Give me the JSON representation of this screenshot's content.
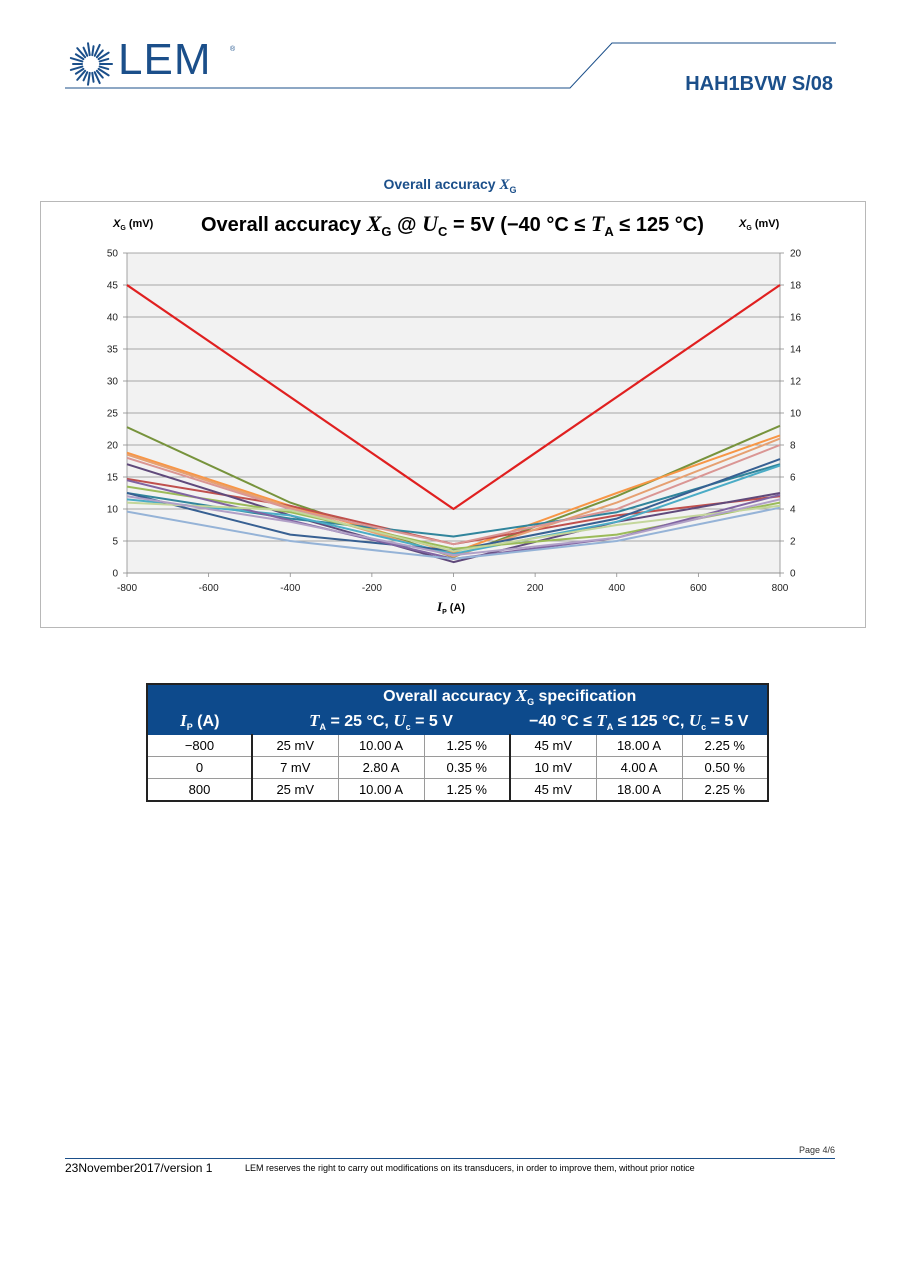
{
  "header": {
    "logo_text": "LEM",
    "logo_registered": "®",
    "doc_code": "HAH1BVW S/08",
    "brand_color": "#1b4f8a"
  },
  "section": {
    "title_prefix": "Overall accuracy ",
    "title_symbol": "X",
    "title_sub": "G"
  },
  "chart_data": {
    "type": "line",
    "title": {
      "p1": "Overall accuracy ",
      "x": "X",
      "xs": "G",
      "p2": " @ ",
      "u": "U",
      "us": "C",
      "p3": " = 5V (−40 °C ≤ ",
      "t": "T",
      "ts": "A",
      "p4": " ≤ 125 °C)"
    },
    "ylabel_left": {
      "sym": "X",
      "sub": "G",
      "unit": " (mV)"
    },
    "ylabel_right": {
      "sym": "X",
      "sub": "G",
      "unit": " (mV)"
    },
    "xlabel": {
      "sym": "I",
      "sub": "P",
      "unit": " (A)"
    },
    "x_ticks": [
      "-800",
      "-600",
      "-400",
      "-200",
      "0",
      "200",
      "400",
      "600",
      "800"
    ],
    "y_left_ticks": [
      "0",
      "5",
      "10",
      "15",
      "20",
      "25",
      "30",
      "35",
      "40",
      "45",
      "50"
    ],
    "y_right_ticks": [
      "0",
      "2",
      "4",
      "6",
      "8",
      "10",
      "12",
      "14",
      "16",
      "18",
      "20"
    ],
    "xlim": [
      -800,
      800
    ],
    "ylim_left": [
      0,
      50
    ],
    "ylim_right": [
      0,
      20
    ],
    "grid": true,
    "plot_bg": "#f2f2f2",
    "limit_color": "#e02020",
    "series": [
      {
        "color": "#e02020",
        "x": [
          -800,
          0,
          800
        ],
        "y": [
          45,
          10,
          45
        ]
      },
      {
        "color": "#77933c",
        "x": [
          -800,
          -400,
          0,
          400,
          800
        ],
        "y": [
          22.8,
          11,
          2.5,
          12,
          23
        ]
      },
      {
        "color": "#f79646",
        "x": [
          -800,
          -400,
          0,
          400,
          800
        ],
        "y": [
          18.8,
          10.5,
          3.2,
          12.5,
          21.5
        ]
      },
      {
        "color": "#c0504d",
        "x": [
          -800,
          -400,
          0,
          400,
          800
        ],
        "y": [
          14.7,
          10.5,
          4.5,
          9,
          12
        ]
      },
      {
        "color": "#604a7b",
        "x": [
          -800,
          -400,
          0,
          400,
          800
        ],
        "y": [
          17,
          9,
          1.7,
          8,
          12.5
        ]
      },
      {
        "color": "#e6a071",
        "x": [
          -800,
          -400,
          0,
          400,
          800
        ],
        "y": [
          18.5,
          10.2,
          2.6,
          11,
          21
        ]
      },
      {
        "color": "#31859c",
        "x": [
          -800,
          -400,
          0,
          400,
          800
        ],
        "y": [
          12.5,
          8.5,
          5.7,
          9.5,
          17
        ]
      },
      {
        "color": "#4bacc6",
        "x": [
          -800,
          -400,
          0,
          400,
          800
        ],
        "y": [
          11.5,
          9,
          3,
          8,
          16.8
        ]
      },
      {
        "color": "#376092",
        "x": [
          -800,
          -400,
          0,
          400,
          800
        ],
        "y": [
          12.5,
          6,
          3.5,
          8.5,
          17.8
        ]
      },
      {
        "color": "#9bbb59",
        "x": [
          -800,
          -400,
          0,
          400,
          800
        ],
        "y": [
          13.5,
          9.5,
          3.8,
          6,
          11
        ]
      },
      {
        "color": "#da9694",
        "x": [
          -800,
          -400,
          0,
          400,
          800
        ],
        "y": [
          18,
          10,
          4.5,
          10,
          20
        ]
      },
      {
        "color": "#8064a2",
        "x": [
          -800,
          -400,
          0,
          400,
          800
        ],
        "y": [
          14.5,
          8.2,
          2.2,
          5.5,
          12.2
        ]
      },
      {
        "color": "#c3d69b",
        "x": [
          -800,
          -400,
          0,
          400,
          800
        ],
        "y": [
          11,
          9.8,
          3.4,
          7.5,
          10.5
        ]
      },
      {
        "color": "#95b3d7",
        "x": [
          -800,
          -400,
          0,
          400,
          800
        ],
        "y": [
          9.6,
          5,
          2.2,
          5,
          10.2
        ]
      },
      {
        "color": "#b1a0c7",
        "x": [
          -800,
          -400,
          0,
          400,
          800
        ],
        "y": [
          12,
          8,
          2.8,
          5.5,
          11.5
        ]
      }
    ]
  },
  "spec_table": {
    "header_prefix": "Overall accuracy ",
    "header_symbol": "X",
    "header_sub": "G",
    "header_suffix": " specification",
    "ip_sym": "I",
    "ip_sub": "P",
    "ip_unit": "  (A)",
    "cond1": {
      "t": "T",
      "ts": "A",
      "mid": " = 25 °C, ",
      "u": "U",
      "us": "c",
      "end": " = 5 V"
    },
    "cond2": {
      "pre": "−40 °C ≤ ",
      "t": "T",
      "ts": "A",
      "mid": " ≤ 125 °C, ",
      "u": "U",
      "us": "c",
      "end": " = 5 V"
    },
    "rows": [
      [
        "−800",
        "25 mV",
        "10.00 A",
        "1.25 %",
        "45 mV",
        "18.00 A",
        "2.25 %"
      ],
      [
        "0",
        "7 mV",
        "2.80 A",
        "0.35 %",
        "10 mV",
        "4.00 A",
        "0.50 %"
      ],
      [
        "800",
        "25 mV",
        "10.00 A",
        "1.25 %",
        "45 mV",
        "18.00 A",
        "2.25 %"
      ]
    ]
  },
  "footer": {
    "page": "Page 4/6",
    "date": "23November2017/version 1",
    "note": "LEM reserves the right to carry out modifications on its transducers, in order to improve them, without prior notice"
  }
}
